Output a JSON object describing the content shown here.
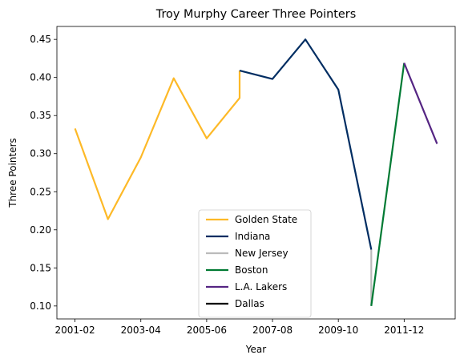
{
  "chart_data": {
    "type": "line",
    "title": "Troy Murphy Career Three Pointers",
    "xlabel": "Year",
    "ylabel": "Three Pointers",
    "x_tick_labels": [
      "2001-02",
      "2003-04",
      "2005-06",
      "2007-08",
      "2009-10",
      "2011-12"
    ],
    "y_tick_labels": [
      "0.10",
      "0.15",
      "0.20",
      "0.25",
      "0.30",
      "0.35",
      "0.40",
      "0.45"
    ],
    "y_ticks": [
      0.1,
      0.15,
      0.2,
      0.25,
      0.3,
      0.35,
      0.4,
      0.45
    ],
    "xlim": [
      "2001-02",
      "2012-13"
    ],
    "ylim": [
      0.083,
      0.467
    ],
    "grid": false,
    "legend_position": "lower-center",
    "seasons": [
      "2001-02",
      "2002-03",
      "2003-04",
      "2004-05",
      "2005-06",
      "2006-07",
      "2007-08",
      "2008-09",
      "2009-10",
      "2010-11",
      "2011-12",
      "2012-13"
    ],
    "series": [
      {
        "name": "Golden State",
        "color": "#FDB927",
        "points": [
          [
            "2001-02",
            0.333
          ],
          [
            "2002-03",
            0.214
          ],
          [
            "2003-04",
            0.295
          ],
          [
            "2004-05",
            0.399
          ],
          [
            "2005-06",
            0.32
          ],
          [
            "2006-07",
            0.373
          ],
          [
            "2006-07",
            0.409
          ]
        ]
      },
      {
        "name": "Indiana",
        "color": "#002D62",
        "points": [
          [
            "2006-07",
            0.409
          ],
          [
            "2007-08",
            0.398
          ],
          [
            "2008-09",
            0.45
          ],
          [
            "2009-10",
            0.384
          ],
          [
            "2010-11",
            0.174
          ]
        ]
      },
      {
        "name": "New Jersey",
        "color": "#BBBBBB",
        "points": [
          [
            "2010-11",
            0.174
          ],
          [
            "2010-11",
            0.1
          ]
        ]
      },
      {
        "name": "Boston",
        "color": "#007A33",
        "points": [
          [
            "2010-11",
            0.1
          ],
          [
            "2011-12",
            0.419
          ]
        ]
      },
      {
        "name": "L.A. Lakers",
        "color": "#552583",
        "points": [
          [
            "2011-12",
            0.419
          ],
          [
            "2012-13",
            0.313
          ]
        ]
      },
      {
        "name": "Dallas",
        "color": "#000000",
        "points": []
      }
    ]
  }
}
